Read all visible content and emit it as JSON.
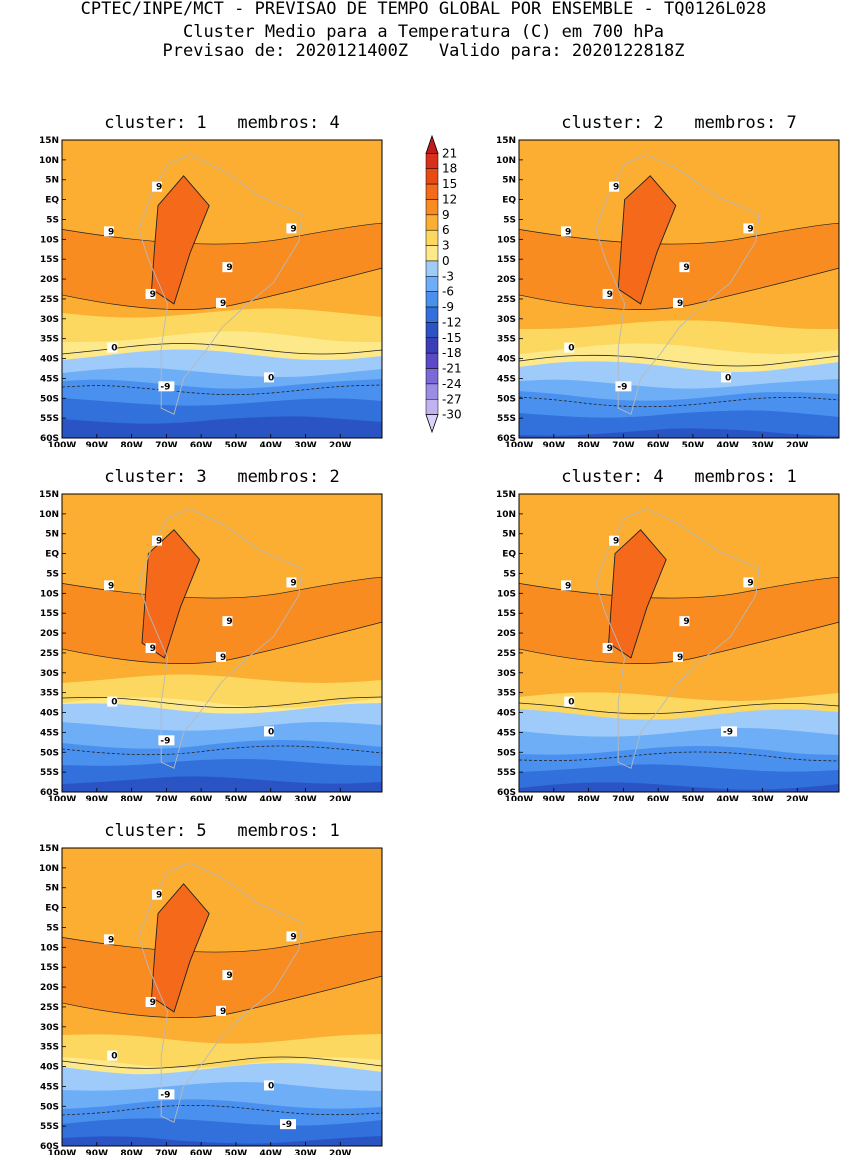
{
  "header": {
    "line1": "CPTEC/INPE/MCT - PREVISAO DE TEMPO GLOBAL POR ENSEMBLE - TQ0126L028",
    "line2": "Cluster Medio para a Temperatura (C) em 700 hPa",
    "line3": "Previsao de: 2020121400Z   Valido para: 2020122818Z"
  },
  "axes": {
    "lat_labels": [
      "15N",
      "10N",
      "5N",
      "EQ",
      "5S",
      "10S",
      "15S",
      "20S",
      "25S",
      "30S",
      "35S",
      "40S",
      "45S",
      "50S",
      "55S",
      "60S"
    ],
    "lon_labels": [
      "100W",
      "90W",
      "80W",
      "70W",
      "60W",
      "50W",
      "40W",
      "30W",
      "20W"
    ]
  },
  "colorbar": {
    "levels": [
      "21",
      "18",
      "15",
      "12",
      "9",
      "6",
      "3",
      "0",
      "-3",
      "-6",
      "-9",
      "-12",
      "-15",
      "-18",
      "-21",
      "-24",
      "-27",
      "-30"
    ],
    "colors": [
      "#c01a1a",
      "#d8301a",
      "#e84a14",
      "#f4691a",
      "#f88c20",
      "#fbae32",
      "#fdd860",
      "#fde98a",
      "#9fcbfa",
      "#6eaef6",
      "#4a90ee",
      "#3270dc",
      "#2a54c4",
      "#3a3eb8",
      "#5a4ac8",
      "#7a6ad8",
      "#9c8ce6",
      "#c0b2f0",
      "#dcd2f8"
    ]
  },
  "panels": [
    {
      "title": "cluster: 1   membros: 4",
      "contour_labels": [
        "9",
        "9",
        "9",
        "9",
        "9",
        "9",
        "0",
        "0",
        "-9"
      ]
    },
    {
      "title": "cluster: 2   membros: 7",
      "contour_labels": [
        "9",
        "9",
        "9",
        "9",
        "9",
        "9",
        "0",
        "0",
        "-9"
      ]
    },
    {
      "title": "cluster: 3   membros: 2",
      "contour_labels": [
        "9",
        "9",
        "9",
        "9",
        "9",
        "9",
        "0",
        "0",
        "-9"
      ]
    },
    {
      "title": "cluster: 4   membros: 1",
      "contour_labels": [
        "9",
        "9",
        "9",
        "9",
        "9",
        "9",
        "0",
        "-9"
      ]
    },
    {
      "title": "cluster: 5   membros: 1",
      "contour_labels": [
        "9",
        "9",
        "9",
        "9",
        "9",
        "9",
        "0",
        "0",
        "-9",
        "-9"
      ]
    }
  ]
}
